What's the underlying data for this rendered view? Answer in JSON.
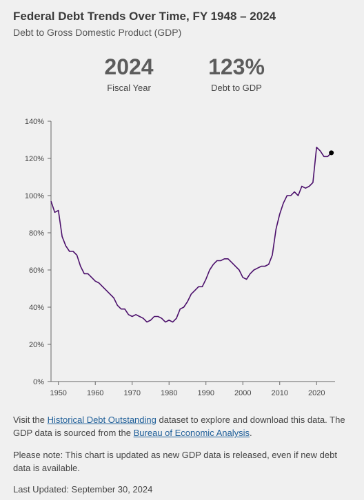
{
  "header": {
    "title": "Federal Debt Trends Over Time, FY 1948 – 2024",
    "subtitle": "Debt to Gross Domestic Product (GDP)"
  },
  "kpis": [
    {
      "value": "2024",
      "label": "Fiscal Year"
    },
    {
      "value": "123%",
      "label": "Debt to GDP"
    }
  ],
  "chart_data": {
    "type": "line",
    "title": "",
    "xlabel": "",
    "ylabel": "",
    "xlim": [
      1948,
      2025
    ],
    "ylim": [
      0,
      140
    ],
    "x_ticks": [
      1950,
      1960,
      1970,
      1980,
      1990,
      2000,
      2010,
      2020
    ],
    "x_tick_labels": [
      "1950",
      "1960",
      "1970",
      "1980",
      "1990",
      "2000",
      "2010",
      "2020"
    ],
    "y_ticks": [
      0,
      20,
      40,
      60,
      80,
      100,
      120,
      140
    ],
    "y_tick_labels": [
      "0%",
      "20%",
      "40%",
      "60%",
      "80%",
      "100%",
      "120%",
      "140%"
    ],
    "grid": false,
    "line_color": "#4b0f6b",
    "marker_color": "#000000",
    "series": [
      {
        "x": [
          1948,
          1949,
          1950,
          1951,
          1952,
          1953,
          1954,
          1955,
          1956,
          1957,
          1958,
          1959,
          1960,
          1961,
          1962,
          1963,
          1964,
          1965,
          1966,
          1967,
          1968,
          1969,
          1970,
          1971,
          1972,
          1973,
          1974,
          1975,
          1976,
          1977,
          1978,
          1979,
          1980,
          1981,
          1982,
          1983,
          1984,
          1985,
          1986,
          1987,
          1988,
          1989,
          1990,
          1991,
          1992,
          1993,
          1994,
          1995,
          1996,
          1997,
          1998,
          1999,
          2000,
          2001,
          2002,
          2003,
          2004,
          2005,
          2006,
          2007,
          2008,
          2009,
          2010,
          2011,
          2012,
          2013,
          2014,
          2015,
          2016,
          2017,
          2018,
          2019,
          2020,
          2021,
          2022,
          2023,
          2024
        ],
        "values": [
          97,
          91,
          92,
          78,
          73,
          70,
          70,
          68,
          62,
          58,
          58,
          56,
          54,
          53,
          51,
          49,
          47,
          45,
          41,
          39,
          39,
          36,
          35,
          36,
          35,
          34,
          32,
          33,
          35,
          35,
          34,
          32,
          33,
          32,
          34,
          39,
          40,
          43,
          47,
          49,
          51,
          51,
          55,
          60,
          63,
          65,
          65,
          66,
          66,
          64,
          62,
          60,
          56,
          55,
          58,
          60,
          61,
          62,
          62,
          63,
          68,
          82,
          90,
          96,
          100,
          100,
          102,
          100,
          105,
          104,
          105,
          107,
          126,
          124,
          121,
          121,
          123
        ]
      }
    ],
    "highlight_point": {
      "x": 2024,
      "y": 123
    }
  },
  "footer": {
    "p1_before": "Visit the ",
    "p1_link1": "Historical Debt Outstanding",
    "p1_mid": " dataset to explore and download this data. The GDP data is sourced from the ",
    "p1_link2": "Bureau of Economic Analysis",
    "p1_end": ".",
    "p2": "Please note: This chart is updated as new GDP data is released, even if new debt data is available.",
    "p3": "Last Updated: September 30, 2024"
  }
}
